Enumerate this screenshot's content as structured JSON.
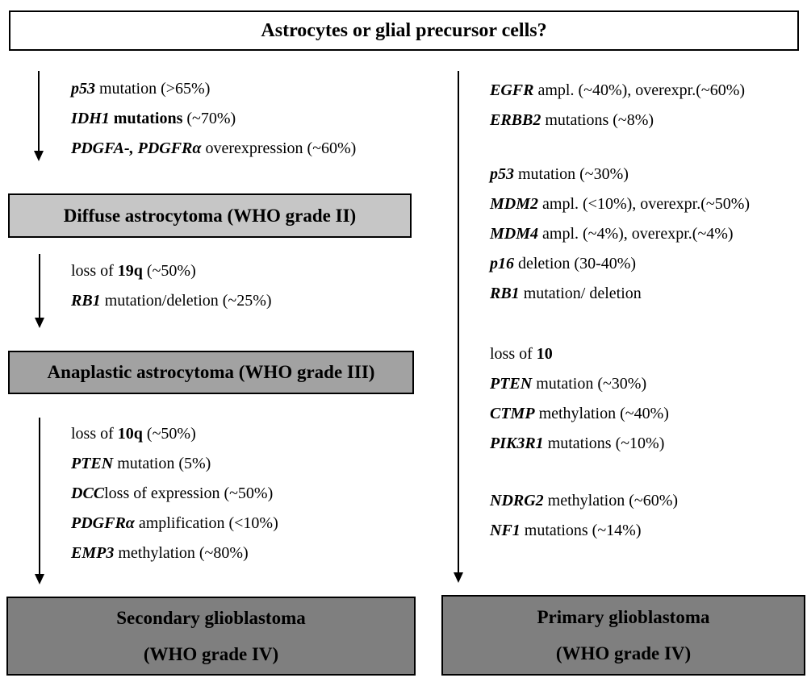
{
  "header": {
    "title": "Astrocytes or glial precursor cells?"
  },
  "colors": {
    "top_box_bg": "#ffffff",
    "grade2_box_bg": "#c6c6c6",
    "grade3_box_bg": "#a2a2a2",
    "grade4_box_bg": "#7f7f7f",
    "border": "#000000",
    "text": "#000000"
  },
  "left_pathway": {
    "step1_alterations": [
      {
        "segments": [
          {
            "t": "p53",
            "s": "gi"
          },
          {
            "t": " mutation (>65%)",
            "s": "r"
          }
        ]
      },
      {
        "segments": [
          {
            "t": "IDH1",
            "s": "gi"
          },
          {
            "t": " mutations",
            "s": "b"
          },
          {
            "t": " (~70%)",
            "s": "r"
          }
        ]
      },
      {
        "segments": [
          {
            "t": "PDGFA-, PDGFRα",
            "s": "gi"
          },
          {
            "t": " overexpression (~60%)",
            "s": "r"
          }
        ]
      }
    ],
    "diffuse_box": {
      "label": "Diffuse astrocytoma (WHO grade II)"
    },
    "step2_alterations": [
      {
        "segments": [
          {
            "t": "loss of ",
            "s": "r"
          },
          {
            "t": "19q",
            "s": "b"
          },
          {
            "t": " (~50%)",
            "s": "r"
          }
        ]
      },
      {
        "segments": [
          {
            "t": "RB1",
            "s": "gi"
          },
          {
            "t": " mutation/deletion (~25%)",
            "s": "r"
          }
        ]
      }
    ],
    "anaplastic_box": {
      "label": "Anaplastic astrocytoma (WHO grade III)"
    },
    "step3_alterations": [
      {
        "segments": [
          {
            "t": "loss of ",
            "s": "r"
          },
          {
            "t": "10q",
            "s": "b"
          },
          {
            "t": " (~50%)",
            "s": "r"
          }
        ]
      },
      {
        "segments": [
          {
            "t": "PTEN",
            "s": "gi"
          },
          {
            "t": " mutation (5%)",
            "s": "r"
          }
        ]
      },
      {
        "segments": [
          {
            "t": "DCC",
            "s": "gi"
          },
          {
            "t": "loss of expression (~50%)",
            "s": "r"
          }
        ]
      },
      {
        "segments": [
          {
            "t": "PDGFRα",
            "s": "gi"
          },
          {
            "t": " amplification (<10%)",
            "s": "r"
          }
        ]
      },
      {
        "segments": [
          {
            "t": "EMP3",
            "s": "gi"
          },
          {
            "t": " methylation (~80%)",
            "s": "r"
          }
        ]
      }
    ],
    "secondary_box": {
      "line1": "Secondary glioblastoma",
      "line2": "(WHO grade IV)"
    }
  },
  "right_pathway": {
    "group1_alterations": [
      {
        "segments": [
          {
            "t": "EGFR",
            "s": "gi"
          },
          {
            "t": " ampl. (~40%), overexpr.(~60%)",
            "s": "r"
          }
        ]
      },
      {
        "segments": [
          {
            "t": "ERBB2",
            "s": "gi"
          },
          {
            "t": " mutations (~8%)",
            "s": "r"
          }
        ]
      }
    ],
    "group2_alterations": [
      {
        "segments": [
          {
            "t": "p53",
            "s": "gi"
          },
          {
            "t": " mutation (~30%)",
            "s": "r"
          }
        ]
      },
      {
        "segments": [
          {
            "t": "MDM2",
            "s": "gi"
          },
          {
            "t": " ampl. (<10%), overexpr.(~50%)",
            "s": "r"
          }
        ]
      },
      {
        "segments": [
          {
            "t": "MDM4",
            "s": "gi"
          },
          {
            "t": " ampl. (~4%), overexpr.(~4%)",
            "s": "r"
          }
        ]
      },
      {
        "segments": [
          {
            "t": "p16",
            "s": "gi"
          },
          {
            "t": " deletion (30-40%)",
            "s": "r"
          }
        ]
      },
      {
        "segments": [
          {
            "t": "RB1",
            "s": "gi"
          },
          {
            "t": " mutation/ deletion",
            "s": "r"
          }
        ]
      }
    ],
    "group3_alterations": [
      {
        "segments": [
          {
            "t": "loss of ",
            "s": "r"
          },
          {
            "t": "10",
            "s": "b"
          }
        ]
      },
      {
        "segments": [
          {
            "t": "PTEN",
            "s": "gi"
          },
          {
            "t": " mutation (~30%)",
            "s": "r"
          }
        ]
      },
      {
        "segments": [
          {
            "t": "CTMP",
            "s": "gi"
          },
          {
            "t": " methylation (~40%)",
            "s": "r"
          }
        ]
      },
      {
        "segments": [
          {
            "t": "PIK3R1",
            "s": "gi"
          },
          {
            "t": " mutations (~10%)",
            "s": "r"
          }
        ]
      }
    ],
    "group4_alterations": [
      {
        "segments": [
          {
            "t": "NDRG2",
            "s": "gi"
          },
          {
            "t": " methylation (~60%)",
            "s": "r"
          }
        ]
      },
      {
        "segments": [
          {
            "t": "NF1",
            "s": "gi"
          },
          {
            "t": " mutations (~14%)",
            "s": "r"
          }
        ]
      }
    ],
    "primary_box": {
      "line1": "Primary glioblastoma",
      "line2": "(WHO grade IV)"
    }
  }
}
